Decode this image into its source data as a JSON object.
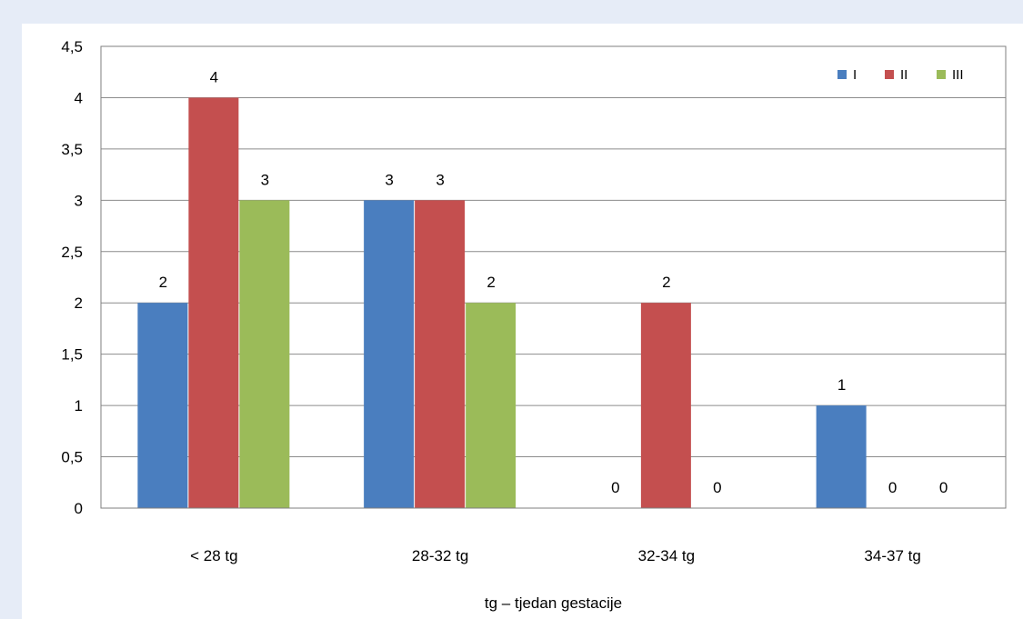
{
  "chart_data": {
    "type": "bar",
    "categories": [
      "< 28 tg",
      "28-32 tg",
      "32-34 tg",
      "34-37 tg"
    ],
    "series": [
      {
        "name": "I",
        "color": "#4a7ebf",
        "values": [
          2,
          3,
          0,
          1
        ]
      },
      {
        "name": "II",
        "color": "#c44f4f",
        "values": [
          4,
          3,
          2,
          0
        ]
      },
      {
        "name": "III",
        "color": "#9bbb59",
        "values": [
          3,
          2,
          0,
          0
        ]
      }
    ],
    "title": "",
    "xlabel": "tg – tjedan gestacije",
    "ylabel": "",
    "ylim": [
      0,
      4.5
    ],
    "yticks": [
      "0",
      "0,5",
      "1",
      "1,5",
      "2",
      "2,5",
      "3",
      "3,5",
      "4",
      "4,5"
    ],
    "grid": true,
    "legend": "top-right",
    "data_labels": true
  }
}
